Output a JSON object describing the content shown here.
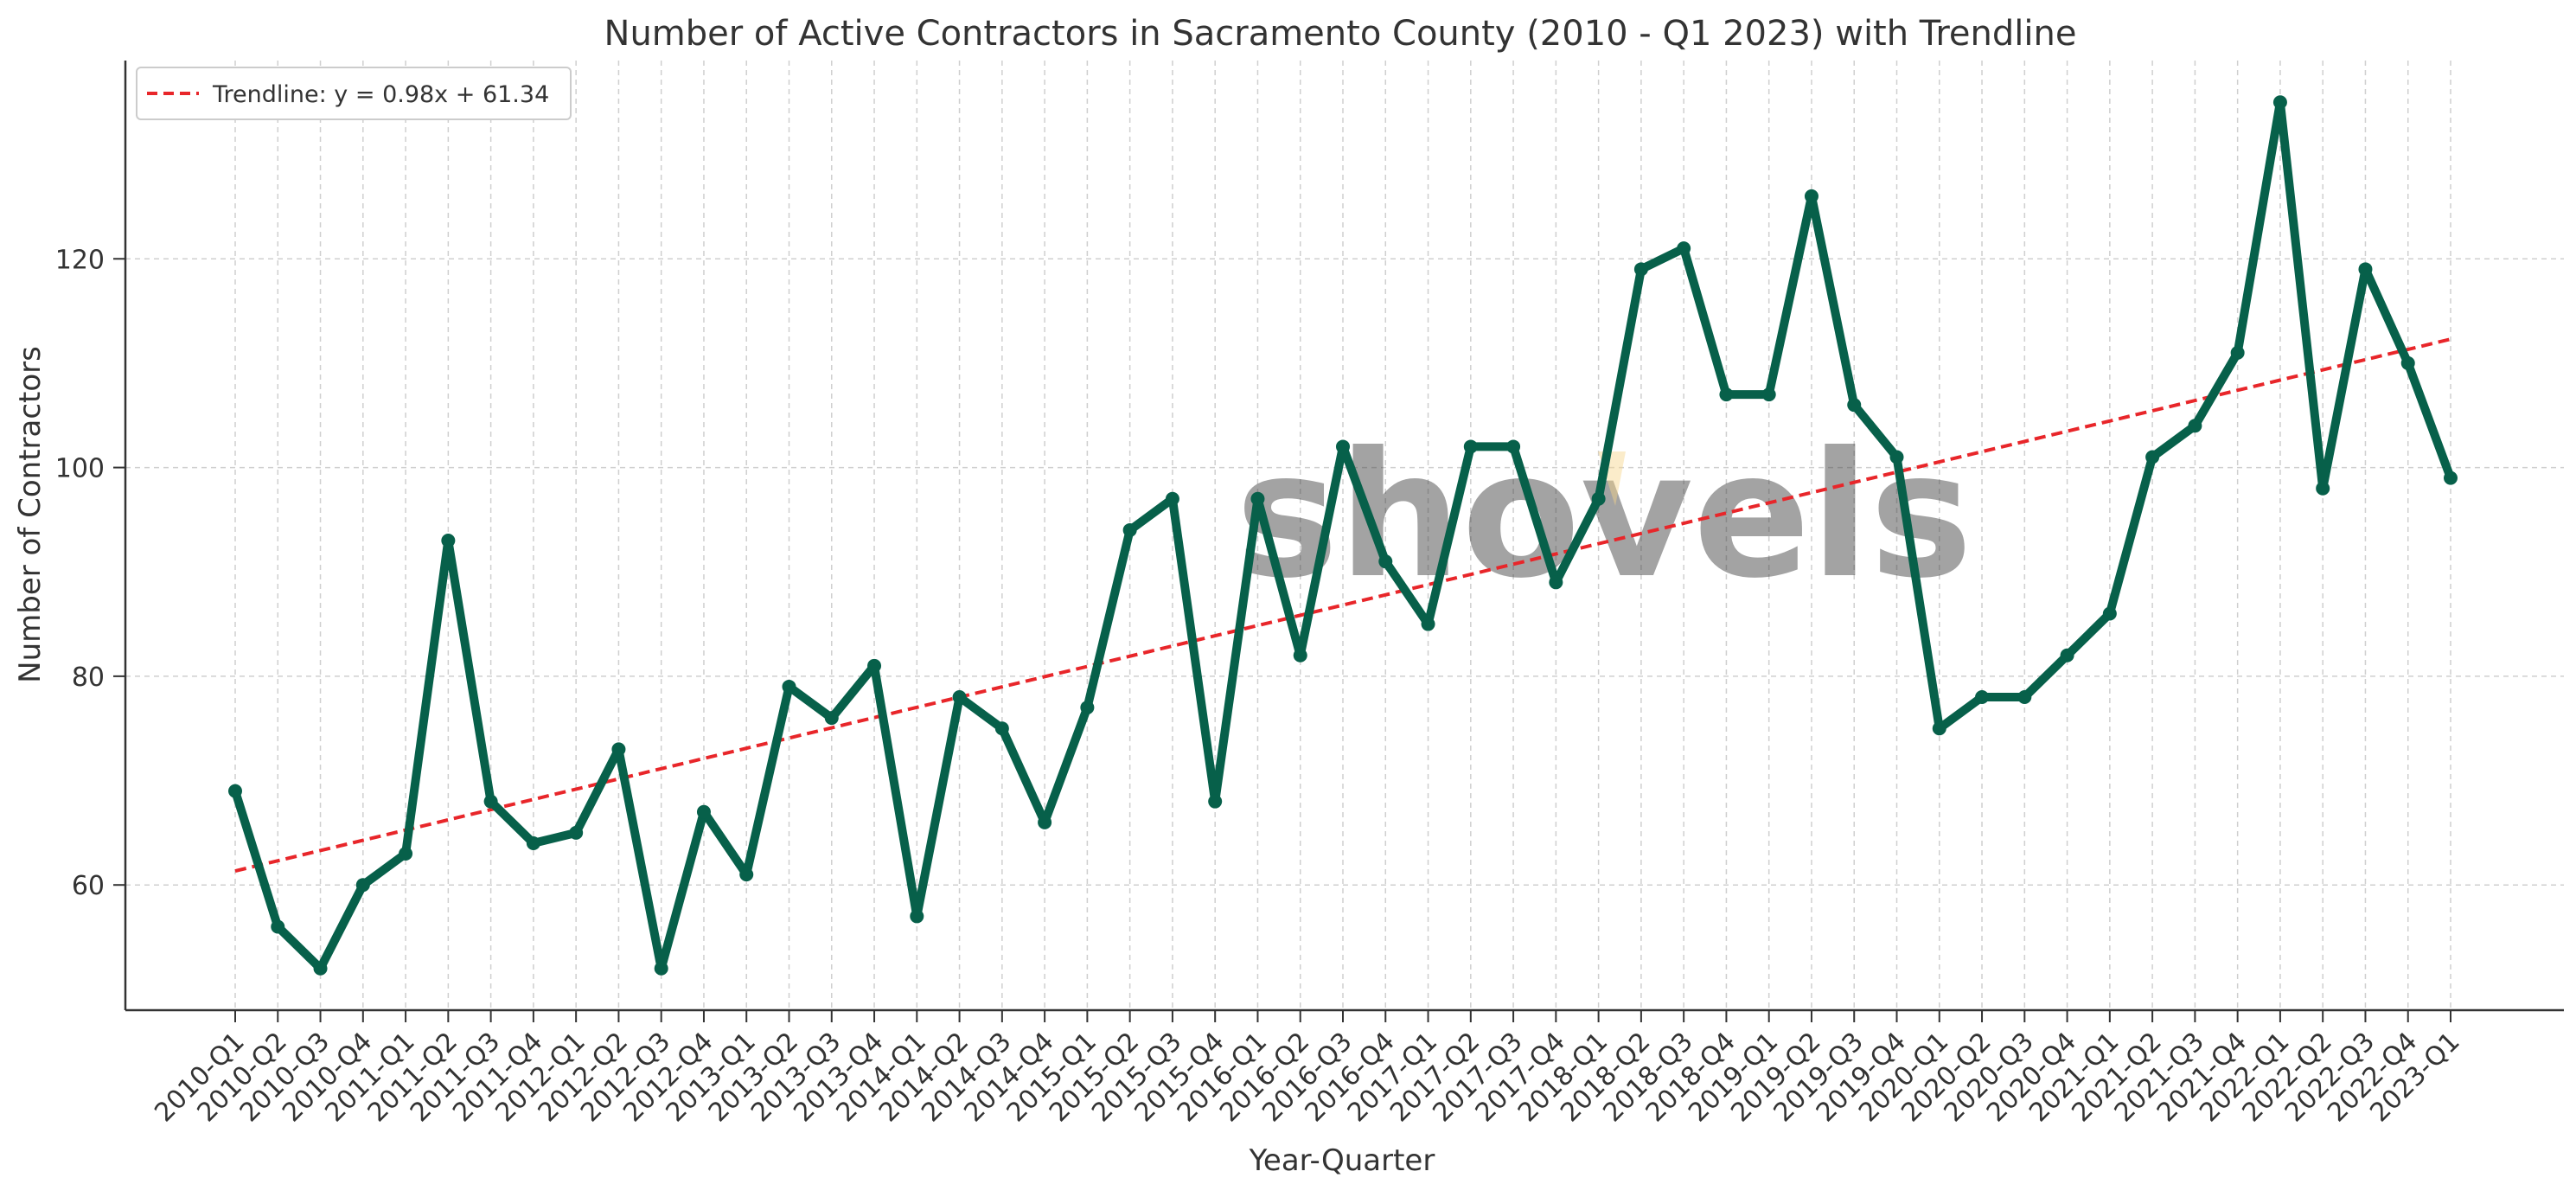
{
  "chart_data": {
    "type": "line",
    "title": "Number of Active Contractors in Sacramento County (2010 - Q1 2023) with Trendline",
    "xlabel": "Year-Quarter",
    "ylabel": "Number of Contractors",
    "ylim": [
      48,
      139
    ],
    "yticks": [
      60,
      80,
      100,
      120
    ],
    "grid": true,
    "legend_position": "top-left",
    "watermark": "shovels",
    "categories": [
      "2010-Q1",
      "2010-Q2",
      "2010-Q3",
      "2010-Q4",
      "2011-Q1",
      "2011-Q2",
      "2011-Q3",
      "2011-Q4",
      "2012-Q1",
      "2012-Q2",
      "2012-Q3",
      "2012-Q4",
      "2013-Q1",
      "2013-Q2",
      "2013-Q3",
      "2013-Q4",
      "2014-Q1",
      "2014-Q2",
      "2014-Q3",
      "2014-Q4",
      "2015-Q1",
      "2015-Q2",
      "2015-Q3",
      "2015-Q4",
      "2016-Q1",
      "2016-Q2",
      "2016-Q3",
      "2016-Q4",
      "2017-Q1",
      "2017-Q2",
      "2017-Q3",
      "2017-Q4",
      "2018-Q1",
      "2018-Q2",
      "2018-Q3",
      "2018-Q4",
      "2019-Q1",
      "2019-Q2",
      "2019-Q3",
      "2019-Q4",
      "2020-Q1",
      "2020-Q2",
      "2020-Q3",
      "2020-Q4",
      "2021-Q1",
      "2021-Q2",
      "2021-Q3",
      "2021-Q4",
      "2022-Q1",
      "2022-Q2",
      "2022-Q3",
      "2022-Q4",
      "2023-Q1"
    ],
    "series": [
      {
        "values": [
          69,
          56,
          52,
          60,
          63,
          93,
          68,
          64,
          65,
          73,
          52,
          67,
          61,
          79,
          76,
          81,
          57,
          78,
          75,
          66,
          77,
          94,
          97,
          68,
          97,
          82,
          102,
          91,
          85,
          102,
          102,
          89,
          97,
          119,
          121,
          107,
          107,
          126,
          106,
          101,
          75,
          78,
          78,
          82,
          86,
          101,
          104,
          111,
          135,
          98,
          119,
          110,
          99
        ],
        "color": "#07604a"
      }
    ],
    "trendline": {
      "name": "Trendline: y = 0.98x + 61.34",
      "slope": 0.98,
      "intercept": 61.34,
      "color": "#e8262a"
    }
  }
}
